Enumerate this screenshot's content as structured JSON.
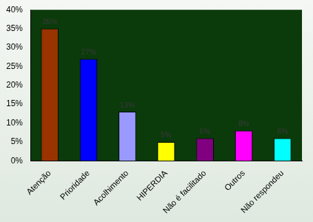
{
  "chart_data": {
    "type": "bar",
    "categories": [
      "Atenção",
      "Prioridade",
      "Acolhimento",
      "HIPERDIA",
      "Não é facilitado",
      "Outros",
      "Não respondeu"
    ],
    "values": [
      35,
      27,
      13,
      5,
      6,
      8,
      6
    ],
    "value_labels": [
      "35%",
      "27%",
      "13%",
      "5%",
      "6%",
      "8%",
      "6%"
    ],
    "colors": [
      "#993300",
      "#0000ff",
      "#9999ff",
      "#ffff00",
      "#800080",
      "#ff00ff",
      "#00ffff"
    ],
    "ylim": [
      0,
      40
    ],
    "yticks": [
      {
        "value": 0,
        "label": "0%"
      },
      {
        "value": 5,
        "label": "5%"
      },
      {
        "value": 10,
        "label": "10%"
      },
      {
        "value": 15,
        "label": "15%"
      },
      {
        "value": 20,
        "label": "20%"
      },
      {
        "value": 25,
        "label": "25%"
      },
      {
        "value": 30,
        "label": "30%"
      },
      {
        "value": 35,
        "label": "35%"
      },
      {
        "value": 40,
        "label": "40%"
      }
    ],
    "grid": false,
    "data_labels": true
  }
}
